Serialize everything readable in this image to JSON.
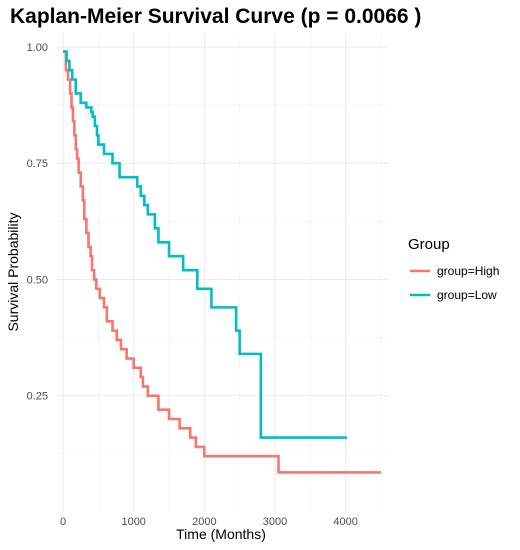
{
  "chart_data": {
    "type": "line",
    "title": "Kaplan-Meier Survival Curve (p = 0.0066 )",
    "xlabel": "Time (Months)",
    "ylabel": "Survival Probability",
    "xlim": [
      -100,
      4600
    ],
    "ylim": [
      0.0,
      1.03
    ],
    "x_ticks": [
      0,
      1000,
      2000,
      3000,
      4000
    ],
    "x_tick_labels": [
      "0",
      "1000",
      "2000",
      "3000",
      "4000"
    ],
    "y_ticks": [
      0.25,
      0.5,
      0.75,
      1.0
    ],
    "y_tick_labels": [
      "0.25",
      "0.50",
      "0.75",
      "1.00"
    ],
    "grid": true,
    "legend": {
      "title": "Group",
      "position": "right"
    },
    "series": [
      {
        "name": "group=High",
        "color": "#F8766D",
        "step_x": [
          0,
          40,
          70,
          100,
          120,
          140,
          160,
          180,
          200,
          220,
          250,
          280,
          300,
          330,
          360,
          390,
          410,
          440,
          470,
          520,
          580,
          620,
          700,
          760,
          820,
          900,
          1000,
          1100,
          1130,
          1200,
          1350,
          1500,
          1650,
          1800,
          1880,
          2000,
          3050,
          4500
        ],
        "step_y": [
          0.99,
          0.95,
          0.93,
          0.9,
          0.87,
          0.84,
          0.81,
          0.78,
          0.76,
          0.73,
          0.7,
          0.67,
          0.63,
          0.6,
          0.57,
          0.55,
          0.52,
          0.5,
          0.48,
          0.46,
          0.44,
          0.41,
          0.39,
          0.37,
          0.35,
          0.33,
          0.31,
          0.29,
          0.27,
          0.25,
          0.22,
          0.2,
          0.18,
          0.16,
          0.14,
          0.12,
          0.085,
          0.085
        ]
      },
      {
        "name": "group=Low",
        "color": "#00BFC4",
        "step_x": [
          0,
          50,
          90,
          130,
          180,
          250,
          330,
          400,
          420,
          450,
          480,
          500,
          580,
          700,
          800,
          1050,
          1100,
          1150,
          1200,
          1300,
          1350,
          1500,
          1700,
          1900,
          2100,
          2450,
          2500,
          2800,
          4020
        ],
        "step_y": [
          0.99,
          0.97,
          0.95,
          0.93,
          0.9,
          0.88,
          0.87,
          0.86,
          0.85,
          0.83,
          0.81,
          0.79,
          0.77,
          0.75,
          0.72,
          0.7,
          0.68,
          0.66,
          0.64,
          0.61,
          0.58,
          0.55,
          0.52,
          0.48,
          0.44,
          0.39,
          0.34,
          0.16,
          0.16
        ]
      }
    ]
  }
}
